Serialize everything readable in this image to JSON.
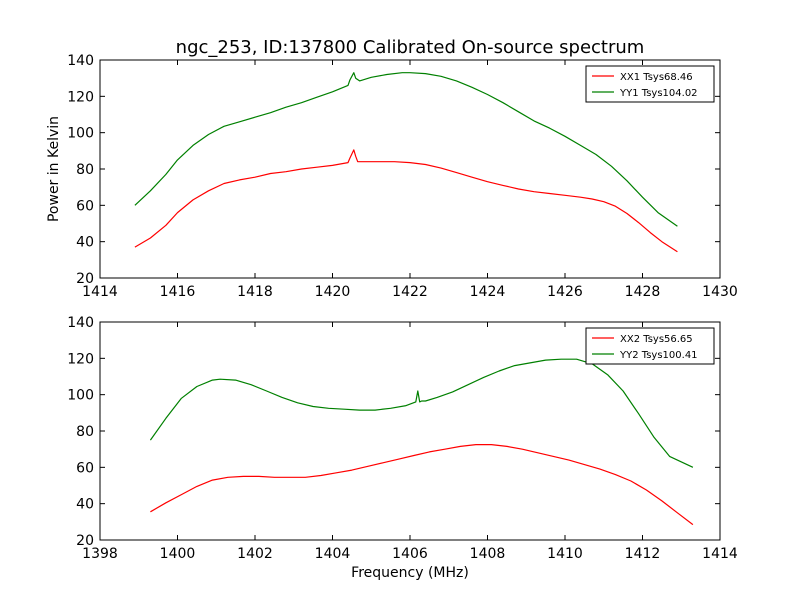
{
  "figure": {
    "title": "ngc_253, ID:137800 Calibrated On-source spectrum"
  },
  "chart_data": [
    {
      "type": "line",
      "title": "ngc_253, ID:137800 Calibrated On-source spectrum",
      "xlabel": "",
      "ylabel": "Power in Kelvin",
      "xlim": [
        1414,
        1430
      ],
      "ylim": [
        20,
        140
      ],
      "xticks": [
        "1414",
        "1416",
        "1418",
        "1420",
        "1422",
        "1424",
        "1426",
        "1428",
        "1430"
      ],
      "yticks": [
        "20",
        "40",
        "60",
        "80",
        "100",
        "120",
        "140"
      ],
      "legend": "top-right",
      "grid": false,
      "series": [
        {
          "name": "XX1 Tsys68.46",
          "color": "#ff0000",
          "x": [
            1414.9,
            1415.3,
            1415.7,
            1416.0,
            1416.4,
            1416.8,
            1417.2,
            1417.6,
            1418.0,
            1418.4,
            1418.8,
            1419.2,
            1419.6,
            1420.0,
            1420.4,
            1420.45,
            1420.55,
            1420.6,
            1420.65,
            1420.8,
            1421.2,
            1421.6,
            1422.0,
            1422.4,
            1422.8,
            1423.2,
            1423.6,
            1424.0,
            1424.4,
            1424.8,
            1425.2,
            1425.6,
            1426.0,
            1426.4,
            1426.7,
            1427.0,
            1427.3,
            1427.6,
            1427.9,
            1428.2,
            1428.5,
            1428.9
          ],
          "values": [
            37,
            42,
            49,
            56,
            63,
            68,
            72,
            74,
            75.5,
            77.5,
            78.5,
            80,
            81,
            82,
            83.5,
            86,
            90.5,
            87,
            84,
            84,
            84,
            84,
            83.5,
            82.5,
            80.5,
            78,
            75.5,
            73,
            71,
            69,
            67.5,
            66.5,
            65.5,
            64.5,
            63.5,
            62,
            59.5,
            55.5,
            50.5,
            45,
            40,
            34.5
          ]
        },
        {
          "name": "YY1 Tsys104.02",
          "color": "#008000",
          "x": [
            1414.9,
            1415.3,
            1415.7,
            1416.0,
            1416.4,
            1416.8,
            1417.2,
            1417.6,
            1418.0,
            1418.4,
            1418.8,
            1419.2,
            1419.6,
            1420.0,
            1420.4,
            1420.45,
            1420.55,
            1420.6,
            1420.7,
            1421.0,
            1421.4,
            1421.8,
            1422.0,
            1422.4,
            1422.8,
            1423.2,
            1423.6,
            1424.0,
            1424.4,
            1424.8,
            1425.2,
            1425.6,
            1426.0,
            1426.4,
            1426.8,
            1427.2,
            1427.6,
            1428.0,
            1428.4,
            1428.9
          ],
          "values": [
            60,
            68,
            77,
            85,
            93,
            99,
            103.5,
            106,
            108.5,
            111,
            114,
            116.5,
            119.5,
            122.5,
            126,
            129,
            133,
            130,
            128.5,
            130.5,
            132,
            133,
            133,
            132.5,
            131,
            128.5,
            125,
            121,
            116.5,
            111.5,
            106.5,
            102.5,
            98,
            93,
            88,
            81.5,
            73.5,
            64.5,
            56,
            48.5
          ]
        }
      ]
    },
    {
      "type": "line",
      "title": "",
      "xlabel": "Frequency (MHz)",
      "ylabel": "",
      "xlim": [
        1398,
        1414
      ],
      "ylim": [
        20,
        140
      ],
      "xticks": [
        "1398",
        "1400",
        "1402",
        "1404",
        "1406",
        "1408",
        "1410",
        "1412",
        "1414"
      ],
      "yticks": [
        "20",
        "40",
        "60",
        "80",
        "100",
        "120",
        "140"
      ],
      "legend": "top-right",
      "grid": false,
      "series": [
        {
          "name": "XX2 Tsys56.65",
          "color": "#ff0000",
          "x": [
            1399.3,
            1399.7,
            1400.1,
            1400.5,
            1400.9,
            1401.3,
            1401.7,
            1402.1,
            1402.5,
            1402.9,
            1403.3,
            1403.7,
            1404.1,
            1404.5,
            1404.9,
            1405.3,
            1405.7,
            1406.1,
            1406.5,
            1406.9,
            1407.3,
            1407.7,
            1408.1,
            1408.5,
            1408.9,
            1409.3,
            1409.7,
            1410.1,
            1410.5,
            1410.9,
            1411.3,
            1411.7,
            1412.1,
            1412.5,
            1412.9,
            1413.3
          ],
          "values": [
            35.5,
            40.5,
            45,
            49.5,
            53,
            54.5,
            55,
            55,
            54.5,
            54.5,
            54.5,
            55.5,
            57,
            58.5,
            60.5,
            62.5,
            64.5,
            66.5,
            68.5,
            70,
            71.5,
            72.5,
            72.5,
            71.5,
            70,
            68,
            66,
            64,
            61.5,
            59,
            56,
            52.5,
            47.5,
            41.5,
            35,
            28.5
          ]
        },
        {
          "name": "YY2 Tsys100.41",
          "color": "#008000",
          "x": [
            1399.3,
            1399.7,
            1400.1,
            1400.5,
            1400.9,
            1401.1,
            1401.5,
            1401.9,
            1402.3,
            1402.7,
            1403.1,
            1403.5,
            1403.9,
            1404.3,
            1404.7,
            1405.1,
            1405.5,
            1405.9,
            1406.15,
            1406.2,
            1406.25,
            1406.3,
            1406.4,
            1406.7,
            1407.1,
            1407.5,
            1407.9,
            1408.3,
            1408.7,
            1409.1,
            1409.5,
            1409.9,
            1410.3,
            1410.7,
            1411.1,
            1411.5,
            1411.9,
            1412.3,
            1412.7,
            1413.3
          ],
          "values": [
            75,
            87,
            98,
            104.5,
            108,
            108.5,
            108,
            105.5,
            102,
            98.5,
            95.5,
            93.5,
            92.5,
            92,
            91.5,
            91.5,
            92.5,
            94,
            96,
            102,
            96,
            96.5,
            96.5,
            98.5,
            101.5,
            105.5,
            109.5,
            113,
            116,
            117.5,
            119,
            119.5,
            119.5,
            117,
            111,
            102,
            89.5,
            76.5,
            66,
            60
          ]
        }
      ]
    }
  ]
}
